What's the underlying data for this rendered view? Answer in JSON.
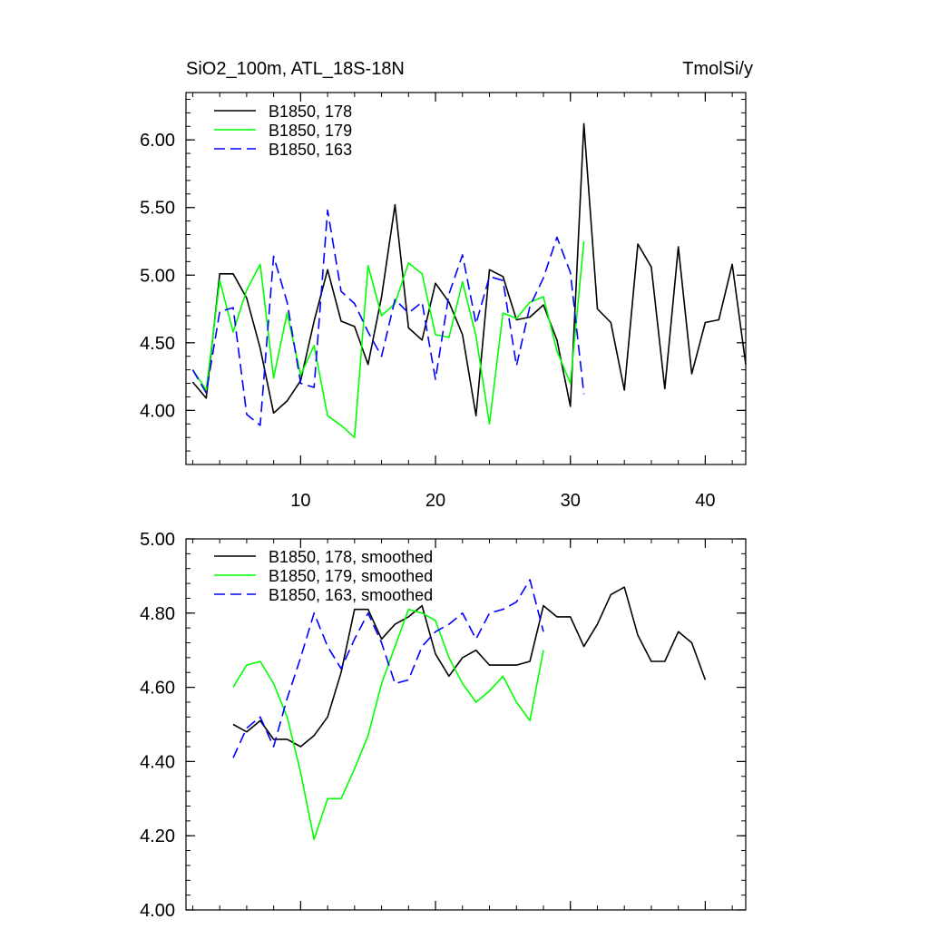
{
  "header": {
    "left_title": "SiO2_100m, ATL_18S-18N",
    "right_title": "TmolSi/y"
  },
  "colors": {
    "s178": "#000000",
    "s179": "#00ff00",
    "s163": "#0000ff"
  },
  "chart_data": [
    {
      "type": "line",
      "title": "",
      "xlim": [
        1.5,
        43
      ],
      "ylim": [
        3.6,
        6.35
      ],
      "xticks": [
        10,
        20,
        30,
        40
      ],
      "xtick_labels": [
        "10",
        "20",
        "30",
        "40"
      ],
      "yticks": [
        4.0,
        4.5,
        5.0,
        5.5,
        6.0
      ],
      "ytick_labels": [
        "4.00",
        "4.50",
        "5.00",
        "5.50",
        "6.00"
      ],
      "legend_position": "top-left",
      "series": [
        {
          "name": "B1850, 178",
          "color": "#000000",
          "dash": false,
          "x": [
            2,
            3,
            4,
            5,
            6,
            7,
            8,
            9,
            10,
            11,
            12,
            13,
            14,
            15,
            16,
            17,
            18,
            19,
            20,
            21,
            22,
            23,
            24,
            25,
            26,
            27,
            28,
            29,
            30,
            31,
            32,
            33,
            34,
            35,
            36,
            37,
            38,
            39,
            40,
            41,
            42,
            43
          ],
          "y": [
            4.21,
            4.09,
            5.01,
            5.01,
            4.83,
            4.46,
            3.98,
            4.07,
            4.22,
            4.66,
            5.04,
            4.66,
            4.62,
            4.34,
            4.84,
            5.52,
            4.61,
            4.52,
            4.94,
            4.8,
            4.56,
            3.96,
            5.04,
            4.99,
            4.67,
            4.69,
            4.78,
            4.52,
            4.03,
            6.12,
            4.75,
            4.65,
            4.15,
            5.23,
            5.06,
            4.16,
            5.21,
            4.27,
            4.65,
            4.67,
            5.08,
            4.34
          ]
        },
        {
          "name": "B1850, 179",
          "color": "#00ff00",
          "dash": false,
          "x": [
            2,
            3,
            4,
            5,
            6,
            7,
            8,
            9,
            10,
            11,
            12,
            13,
            14,
            15,
            16,
            17,
            18,
            19,
            20,
            21,
            22,
            23,
            24,
            25,
            26,
            27,
            28,
            29,
            30,
            31
          ],
          "y": [
            4.3,
            4.15,
            4.96,
            4.58,
            4.89,
            5.08,
            4.24,
            4.72,
            4.26,
            4.48,
            3.96,
            3.89,
            3.8,
            5.07,
            4.7,
            4.79,
            5.09,
            5.01,
            4.56,
            4.54,
            4.95,
            4.55,
            3.9,
            4.72,
            4.68,
            4.8,
            4.84,
            4.44,
            4.2,
            5.25
          ]
        },
        {
          "name": "B1850, 163",
          "color": "#0000ff",
          "dash": true,
          "x": [
            2,
            3,
            4,
            5,
            6,
            7,
            8,
            9,
            10,
            11,
            12,
            13,
            14,
            15,
            16,
            17,
            18,
            19,
            20,
            21,
            22,
            23,
            24,
            25,
            26,
            27,
            28,
            29,
            30,
            31
          ],
          "y": [
            4.3,
            4.13,
            4.73,
            4.76,
            3.97,
            3.89,
            5.14,
            4.8,
            4.2,
            4.17,
            5.48,
            4.88,
            4.79,
            4.58,
            4.4,
            4.82,
            4.72,
            4.8,
            4.23,
            4.86,
            5.15,
            4.64,
            4.99,
            4.96,
            4.33,
            4.77,
            4.98,
            5.28,
            5.02,
            4.12
          ]
        }
      ]
    },
    {
      "type": "line",
      "title": "",
      "xlim": [
        1.5,
        43
      ],
      "ylim": [
        4.0,
        5.0
      ],
      "xticks": [
        10,
        20,
        30,
        40
      ],
      "xtick_labels": [],
      "yticks": [
        4.0,
        4.2,
        4.4,
        4.6,
        4.8,
        5.0
      ],
      "ytick_labels": [
        "4.00",
        "4.20",
        "4.40",
        "4.60",
        "4.80",
        "5.00"
      ],
      "legend_position": "top-left",
      "series": [
        {
          "name": "B1850, 178, smoothed",
          "color": "#000000",
          "dash": false,
          "x": [
            5,
            6,
            7,
            8,
            9,
            10,
            11,
            12,
            13,
            14,
            15,
            16,
            17,
            18,
            19,
            20,
            21,
            22,
            23,
            24,
            25,
            26,
            27,
            28,
            29,
            30,
            31,
            32,
            33,
            34,
            35,
            36,
            37,
            38,
            39,
            40
          ],
          "y": [
            4.5,
            4.48,
            4.51,
            4.46,
            4.46,
            4.44,
            4.47,
            4.52,
            4.64,
            4.81,
            4.81,
            4.73,
            4.77,
            4.79,
            4.82,
            4.69,
            4.63,
            4.68,
            4.7,
            4.66,
            4.66,
            4.66,
            4.67,
            4.82,
            4.79,
            4.79,
            4.71,
            4.77,
            4.85,
            4.87,
            4.74,
            4.67,
            4.67,
            4.75,
            4.72,
            4.62
          ]
        },
        {
          "name": "B1850, 179, smoothed",
          "color": "#00ff00",
          "dash": false,
          "x": [
            5,
            6,
            7,
            8,
            9,
            10,
            11,
            12,
            13,
            14,
            15,
            16,
            17,
            18,
            19,
            20,
            21,
            22,
            23,
            24,
            25,
            26,
            27,
            28
          ],
          "y": [
            4.6,
            4.66,
            4.67,
            4.61,
            4.52,
            4.37,
            4.19,
            4.3,
            4.3,
            4.38,
            4.47,
            4.61,
            4.71,
            4.81,
            4.8,
            4.78,
            4.68,
            4.61,
            4.56,
            4.59,
            4.63,
            4.56,
            4.51,
            4.7
          ]
        },
        {
          "name": "B1850, 163, smoothed",
          "color": "#0000ff",
          "dash": true,
          "x": [
            5,
            6,
            7,
            8,
            9,
            10,
            11,
            12,
            13,
            14,
            15,
            16,
            17,
            18,
            19,
            20,
            21,
            22,
            23,
            24,
            25,
            26,
            27,
            28
          ],
          "y": [
            4.41,
            4.49,
            4.52,
            4.44,
            4.57,
            4.68,
            4.8,
            4.71,
            4.65,
            4.73,
            4.8,
            4.72,
            4.61,
            4.62,
            4.71,
            4.75,
            4.77,
            4.8,
            4.73,
            4.8,
            4.81,
            4.83,
            4.89,
            4.75
          ]
        }
      ]
    }
  ]
}
